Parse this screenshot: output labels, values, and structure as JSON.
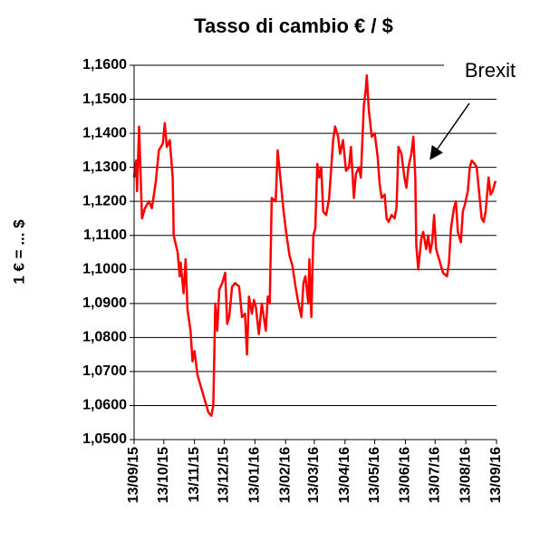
{
  "chart_data": {
    "type": "line",
    "title": "Tasso di cambio € / $",
    "y_label": "1 € = ... $",
    "annotation": "Brexit",
    "x": [
      "2015-09-13",
      "2015-09-15",
      "2015-09-16",
      "2015-09-18",
      "2015-09-21",
      "2015-09-24",
      "2015-09-28",
      "2015-10-01",
      "2015-10-05",
      "2015-10-08",
      "2015-10-12",
      "2015-10-14",
      "2015-10-16",
      "2015-10-19",
      "2015-10-22",
      "2015-10-23",
      "2015-10-27",
      "2015-10-29",
      "2015-10-30",
      "2015-11-02",
      "2015-11-04",
      "2015-11-06",
      "2015-11-09",
      "2015-11-11",
      "2015-11-13",
      "2015-11-16",
      "2015-11-19",
      "2015-11-22",
      "2015-11-24",
      "2015-11-27",
      "2015-11-30",
      "2015-12-02",
      "2015-12-04",
      "2015-12-06",
      "2015-12-08",
      "2015-12-11",
      "2015-12-14",
      "2015-12-16",
      "2015-12-18",
      "2015-12-21",
      "2015-12-24",
      "2015-12-28",
      "2015-12-31",
      "2016-01-03",
      "2016-01-05",
      "2016-01-07",
      "2016-01-10",
      "2016-01-12",
      "2016-01-14",
      "2016-01-17",
      "2016-01-20",
      "2016-01-24",
      "2016-01-26",
      "2016-01-28",
      "2016-01-30",
      "2016-02-03",
      "2016-02-05",
      "2016-02-08",
      "2016-02-11",
      "2016-02-14",
      "2016-02-17",
      "2016-02-20",
      "2016-02-23",
      "2016-02-26",
      "2016-02-29",
      "2016-03-02",
      "2016-03-04",
      "2016-03-07",
      "2016-03-08",
      "2016-03-10",
      "2016-03-12",
      "2016-03-14",
      "2016-03-16",
      "2016-03-18",
      "2016-03-20",
      "2016-03-22",
      "2016-03-25",
      "2016-03-28",
      "2016-04-01",
      "2016-04-03",
      "2016-04-06",
      "2016-04-08",
      "2016-04-11",
      "2016-04-14",
      "2016-04-17",
      "2016-04-19",
      "2016-04-22",
      "2016-04-24",
      "2016-04-27",
      "2016-04-29",
      "2016-05-02",
      "2016-05-04",
      "2016-05-05",
      "2016-05-07",
      "2016-05-10",
      "2016-05-13",
      "2016-05-16",
      "2016-05-18",
      "2016-05-20",
      "2016-05-23",
      "2016-05-25",
      "2016-05-27",
      "2016-05-30",
      "2016-06-02",
      "2016-06-04",
      "2016-06-06",
      "2016-06-09",
      "2016-06-12",
      "2016-06-14",
      "2016-06-16",
      "2016-06-19",
      "2016-06-21",
      "2016-06-23",
      "2016-06-24",
      "2016-06-26",
      "2016-06-29",
      "2016-07-01",
      "2016-07-04",
      "2016-07-06",
      "2016-07-08",
      "2016-07-10",
      "2016-07-12",
      "2016-07-14",
      "2016-07-18",
      "2016-07-21",
      "2016-07-25",
      "2016-07-27",
      "2016-07-29",
      "2016-08-01",
      "2016-08-03",
      "2016-08-05",
      "2016-08-08",
      "2016-08-10",
      "2016-08-12",
      "2016-08-15",
      "2016-08-17",
      "2016-08-19",
      "2016-08-22",
      "2016-08-24",
      "2016-08-26",
      "2016-08-29",
      "2016-08-31",
      "2016-09-02",
      "2016-09-05",
      "2016-09-07",
      "2016-09-09",
      "2016-09-12"
    ],
    "series": [
      {
        "name": "€ / $",
        "color": "#ff0000",
        "values": [
          1.127,
          1.132,
          1.123,
          1.142,
          1.115,
          1.118,
          1.12,
          1.118,
          1.126,
          1.135,
          1.137,
          1.143,
          1.136,
          1.138,
          1.127,
          1.11,
          1.105,
          1.098,
          1.102,
          1.093,
          1.103,
          1.088,
          1.082,
          1.073,
          1.076,
          1.069,
          1.066,
          1.063,
          1.061,
          1.058,
          1.057,
          1.06,
          1.09,
          1.082,
          1.094,
          1.096,
          1.099,
          1.084,
          1.086,
          1.095,
          1.096,
          1.095,
          1.086,
          1.087,
          1.075,
          1.092,
          1.087,
          1.091,
          1.089,
          1.081,
          1.09,
          1.082,
          1.092,
          1.09,
          1.121,
          1.12,
          1.135,
          1.126,
          1.117,
          1.11,
          1.104,
          1.101,
          1.095,
          1.09,
          1.086,
          1.096,
          1.098,
          1.09,
          1.103,
          1.086,
          1.11,
          1.112,
          1.131,
          1.127,
          1.13,
          1.117,
          1.116,
          1.121,
          1.138,
          1.142,
          1.139,
          1.134,
          1.138,
          1.129,
          1.13,
          1.136,
          1.121,
          1.128,
          1.13,
          1.127,
          1.148,
          1.153,
          1.157,
          1.147,
          1.139,
          1.14,
          1.133,
          1.125,
          1.121,
          1.122,
          1.115,
          1.114,
          1.116,
          1.115,
          1.118,
          1.136,
          1.134,
          1.127,
          1.124,
          1.13,
          1.134,
          1.139,
          1.127,
          1.107,
          1.1,
          1.109,
          1.111,
          1.106,
          1.11,
          1.105,
          1.108,
          1.116,
          1.106,
          1.102,
          1.099,
          1.098,
          1.102,
          1.112,
          1.118,
          1.12,
          1.111,
          1.108,
          1.117,
          1.119,
          1.123,
          1.13,
          1.132,
          1.131,
          1.13,
          1.124,
          1.115,
          1.114,
          1.117,
          1.127,
          1.122,
          1.123,
          1.126
        ]
      }
    ],
    "xlim": [
      "2015-09-13",
      "2016-09-13"
    ],
    "xticks": [
      {
        "value": "2015-09-13",
        "label": "13/09/15"
      },
      {
        "value": "2015-10-13",
        "label": "13/10/15"
      },
      {
        "value": "2015-11-13",
        "label": "13/11/15"
      },
      {
        "value": "2015-12-13",
        "label": "13/12/15"
      },
      {
        "value": "2016-01-13",
        "label": "13/01/16"
      },
      {
        "value": "2016-02-13",
        "label": "13/02/16"
      },
      {
        "value": "2016-03-13",
        "label": "13/03/16"
      },
      {
        "value": "2016-04-13",
        "label": "13/04/16"
      },
      {
        "value": "2016-05-13",
        "label": "13/05/16"
      },
      {
        "value": "2016-06-13",
        "label": "13/06/16"
      },
      {
        "value": "2016-07-13",
        "label": "13/07/16"
      },
      {
        "value": "2016-08-13",
        "label": "13/08/16"
      },
      {
        "value": "2016-09-13",
        "label": "13/09/16"
      }
    ],
    "ylim": [
      1.05,
      1.16
    ],
    "yticks": [
      {
        "value": 1.05,
        "label": "1,0500"
      },
      {
        "value": 1.06,
        "label": "1,0600"
      },
      {
        "value": 1.07,
        "label": "1,0700"
      },
      {
        "value": 1.08,
        "label": "1,0800"
      },
      {
        "value": 1.09,
        "label": "1,0900"
      },
      {
        "value": 1.1,
        "label": "1,1000"
      },
      {
        "value": 1.11,
        "label": "1,1100"
      },
      {
        "value": 1.12,
        "label": "1,1200"
      },
      {
        "value": 1.13,
        "label": "1,1300"
      },
      {
        "value": 1.14,
        "label": "1,1400"
      },
      {
        "value": 1.15,
        "label": "1,1500"
      },
      {
        "value": 1.16,
        "label": "1,1600"
      }
    ],
    "grid": true
  }
}
